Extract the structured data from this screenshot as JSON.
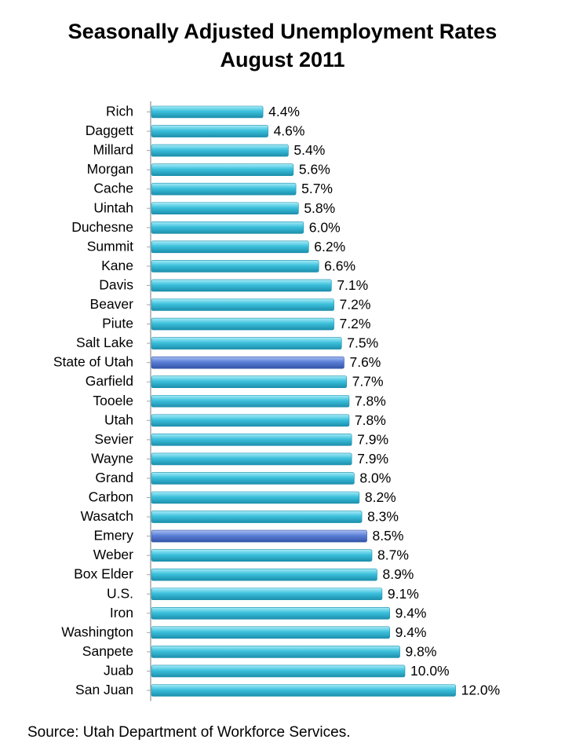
{
  "chart_data": {
    "type": "bar",
    "orientation": "horizontal",
    "title": "Seasonally Adjusted Unemployment Rates",
    "subtitle": "August 2011",
    "value_suffix": "%",
    "categories": [
      "Rich",
      "Daggett",
      "Millard",
      "Morgan",
      "Cache",
      "Uintah",
      "Duchesne",
      "Summit",
      "Kane",
      "Davis",
      "Beaver",
      "Piute",
      "Salt Lake",
      "State of Utah",
      "Garfield",
      "Tooele",
      "Utah",
      "Sevier",
      "Wayne",
      "Grand",
      "Carbon",
      "Wasatch",
      "Emery",
      "Weber",
      "Box Elder",
      "U.S.",
      "Iron",
      "Washington",
      "Sanpete",
      "Juab",
      "San Juan"
    ],
    "values": [
      4.4,
      4.6,
      5.4,
      5.6,
      5.7,
      5.8,
      6.0,
      6.2,
      6.6,
      7.1,
      7.2,
      7.2,
      7.5,
      7.6,
      7.7,
      7.8,
      7.8,
      7.9,
      7.9,
      8.0,
      8.2,
      8.3,
      8.5,
      8.7,
      8.9,
      9.1,
      9.4,
      9.4,
      9.8,
      10.0,
      12.0
    ],
    "labels": [
      "4.4%",
      "4.6%",
      "5.4%",
      "5.6%",
      "5.7%",
      "5.8%",
      "6.0%",
      "6.2%",
      "6.6%",
      "7.1%",
      "7.2%",
      "7.2%",
      "7.5%",
      "7.6%",
      "7.7%",
      "7.8%",
      "7.8%",
      "7.9%",
      "7.9%",
      "8.0%",
      "8.2%",
      "8.3%",
      "8.5%",
      "8.7%",
      "8.9%",
      "9.1%",
      "9.4%",
      "9.4%",
      "9.8%",
      "10.0%",
      "12.0%"
    ],
    "highlighted": [
      "State of Utah",
      "Emery"
    ],
    "colors": {
      "bar": "#3cc0dc",
      "bar_dark": "#1c8fac",
      "highlight": "#5b7fd6",
      "highlight_dark": "#3554a8",
      "axis": "#a6a6a6"
    },
    "xlim": [
      0,
      12
    ],
    "grid": false,
    "legend": "none"
  },
  "source": "Source: Utah Department of Workforce Services."
}
